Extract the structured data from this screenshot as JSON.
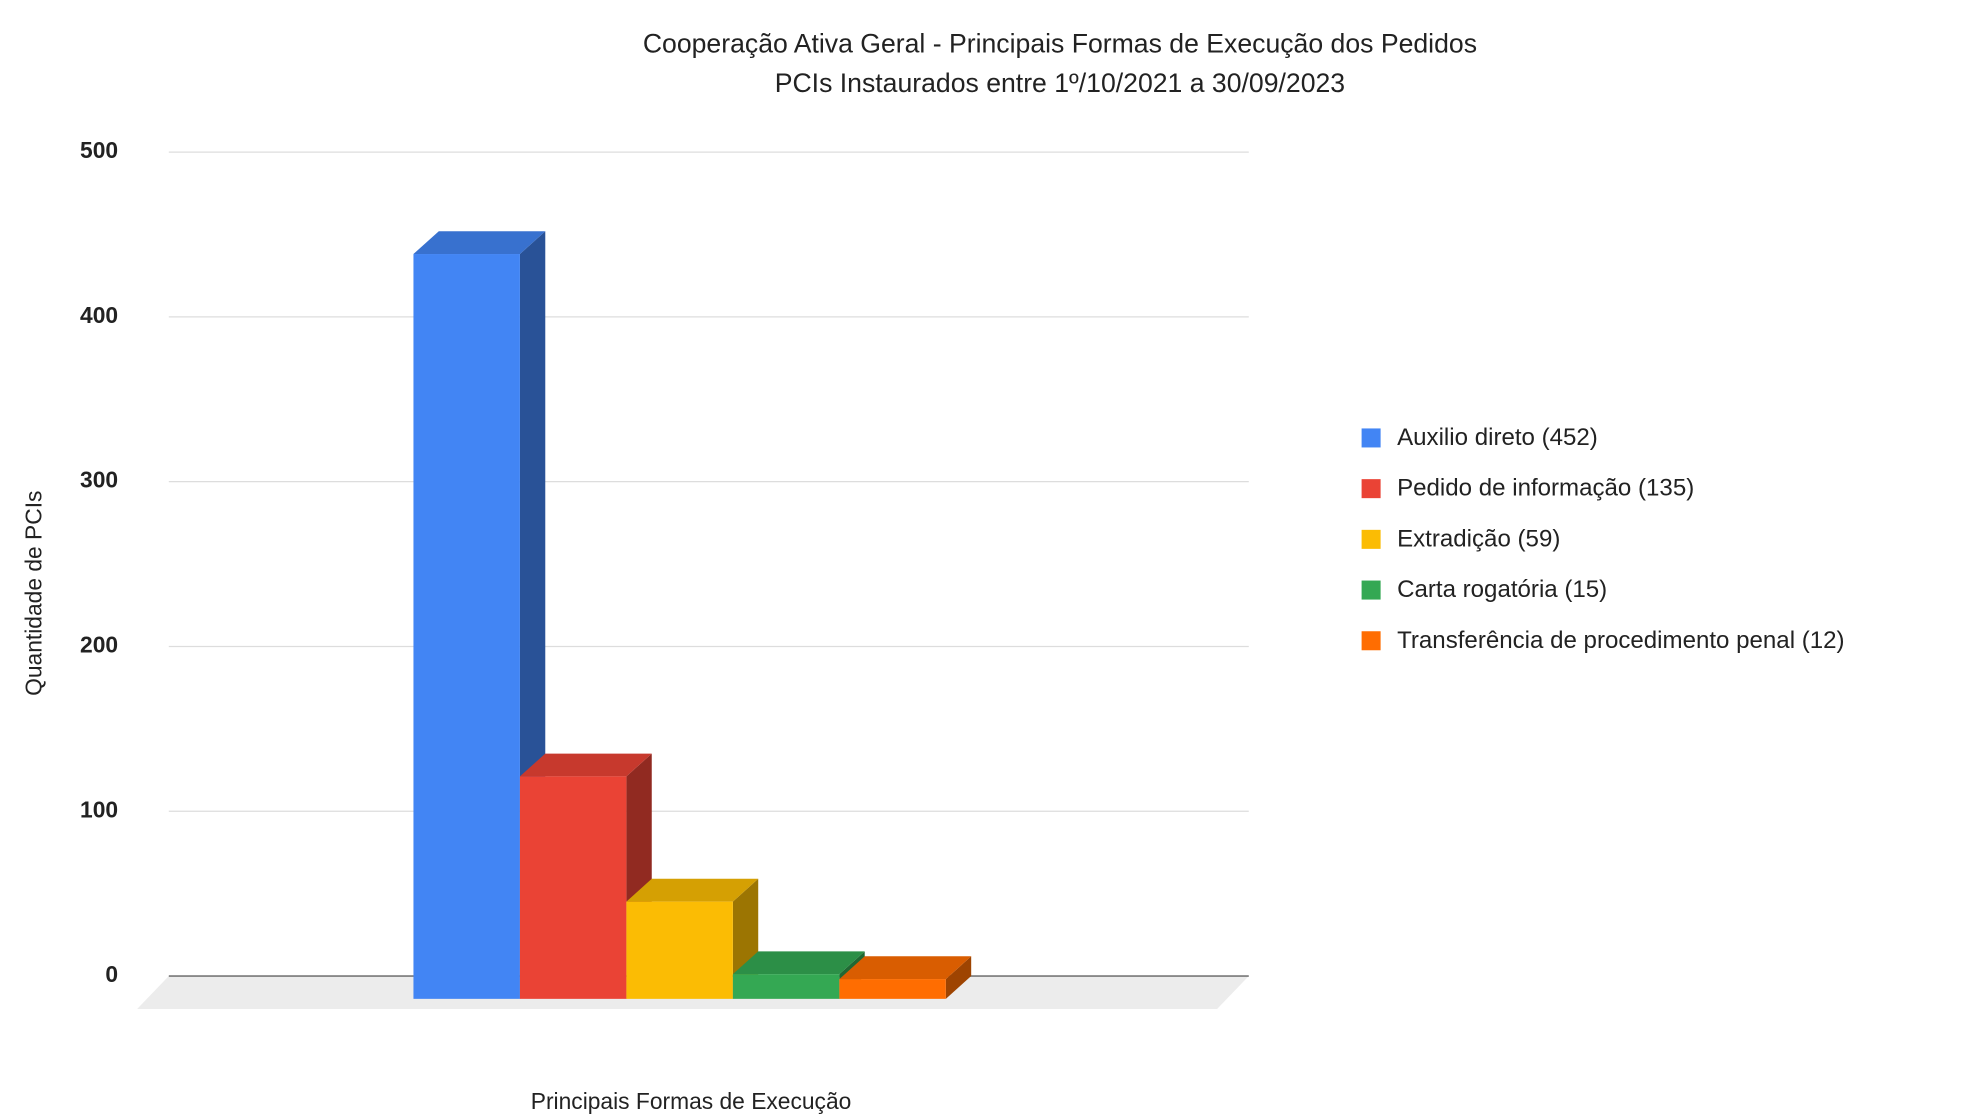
{
  "chart_data": {
    "type": "bar",
    "title": "Cooperação Ativa Geral - Principais Formas de Execução dos Pedidos",
    "subtitle": "PCIs Instaurados entre 1º/10/2021 a 30/09/2023",
    "x_label": "Principais Formas de Execução",
    "y_label": "Quantidade de PCIs",
    "series": [
      {
        "name": "Auxilio direto (452)",
        "color": "#4285f4",
        "values": [
          452
        ]
      },
      {
        "name": "Pedido de informação (135)",
        "color": "#ea4335",
        "values": [
          135
        ]
      },
      {
        "name": "Extradição (59)",
        "color": "#fbbc04",
        "values": [
          59
        ]
      },
      {
        "name": "Carta rogatória (15)",
        "color": "#34a853",
        "values": [
          15
        ]
      },
      {
        "name": "Transferência de procedimento penal (12)",
        "color": "#ff6d01",
        "values": [
          12
        ]
      }
    ],
    "ylim": [
      0,
      500
    ],
    "yticks": [
      0,
      100,
      200,
      300,
      400,
      500
    ],
    "grid": true,
    "legend": "right"
  }
}
